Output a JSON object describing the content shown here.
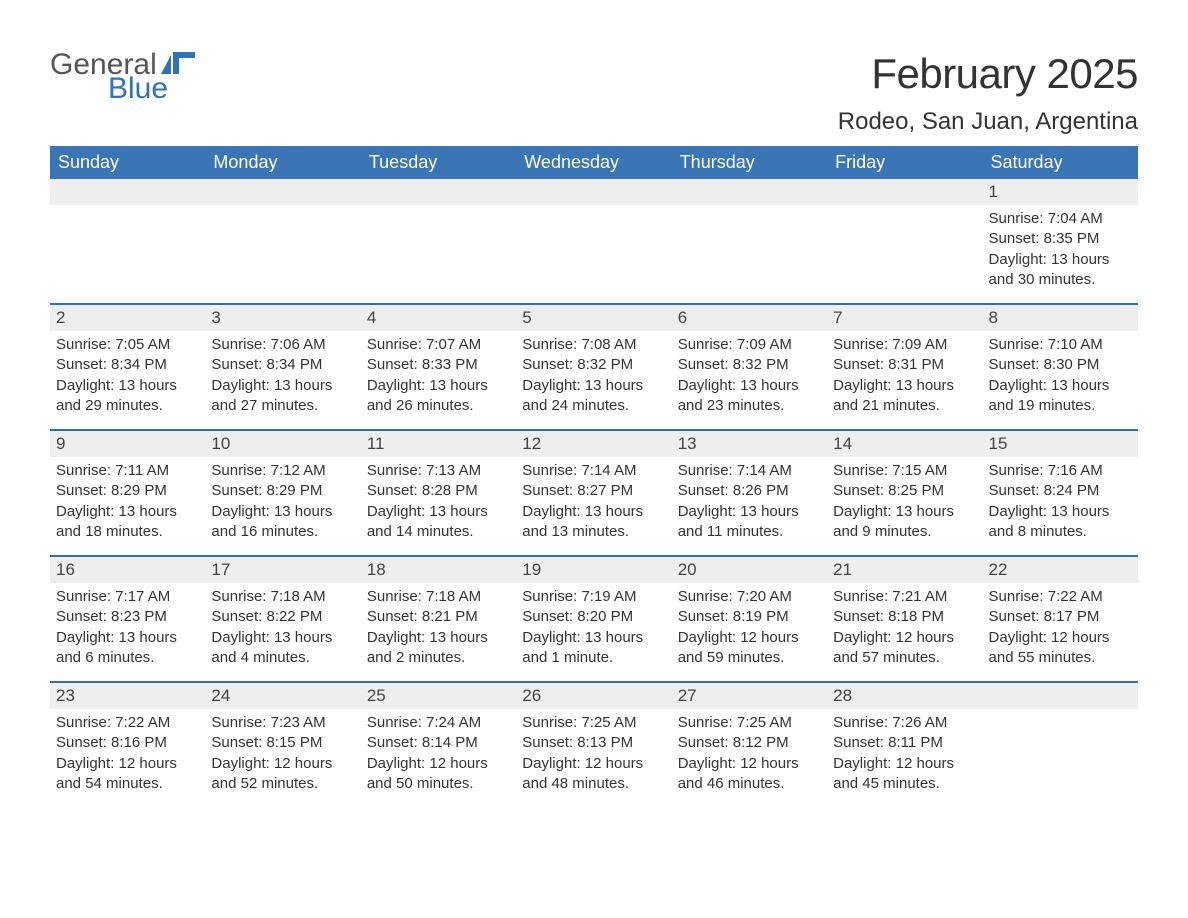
{
  "logo": {
    "word1": "General",
    "word2": "Blue"
  },
  "title": "February 2025",
  "location": "Rodeo, San Juan, Argentina",
  "colors": {
    "header_bg": "#3a75b5",
    "header_text": "#ffffff",
    "accent_border": "#2f6fad",
    "daynum_bg": "#eeeeee",
    "body_text": "#333333",
    "logo_gray": "#555555",
    "logo_blue": "#2f72b8",
    "page_bg": "#ffffff"
  },
  "typography": {
    "month_title_fontsize": 42,
    "location_fontsize": 24,
    "dayheader_fontsize": 18,
    "daynum_fontsize": 17,
    "body_fontsize": 15,
    "font_family": "Arial"
  },
  "layout": {
    "columns": 7,
    "rows": 5,
    "start_day_index": 6
  },
  "day_names": [
    "Sunday",
    "Monday",
    "Tuesday",
    "Wednesday",
    "Thursday",
    "Friday",
    "Saturday"
  ],
  "weeks": [
    [
      {
        "empty": true
      },
      {
        "empty": true
      },
      {
        "empty": true
      },
      {
        "empty": true
      },
      {
        "empty": true
      },
      {
        "empty": true
      },
      {
        "n": "1",
        "sunrise": "Sunrise: 7:04 AM",
        "sunset": "Sunset: 8:35 PM",
        "daylight": "Daylight: 13 hours and 30 minutes."
      }
    ],
    [
      {
        "n": "2",
        "sunrise": "Sunrise: 7:05 AM",
        "sunset": "Sunset: 8:34 PM",
        "daylight": "Daylight: 13 hours and 29 minutes."
      },
      {
        "n": "3",
        "sunrise": "Sunrise: 7:06 AM",
        "sunset": "Sunset: 8:34 PM",
        "daylight": "Daylight: 13 hours and 27 minutes."
      },
      {
        "n": "4",
        "sunrise": "Sunrise: 7:07 AM",
        "sunset": "Sunset: 8:33 PM",
        "daylight": "Daylight: 13 hours and 26 minutes."
      },
      {
        "n": "5",
        "sunrise": "Sunrise: 7:08 AM",
        "sunset": "Sunset: 8:32 PM",
        "daylight": "Daylight: 13 hours and 24 minutes."
      },
      {
        "n": "6",
        "sunrise": "Sunrise: 7:09 AM",
        "sunset": "Sunset: 8:32 PM",
        "daylight": "Daylight: 13 hours and 23 minutes."
      },
      {
        "n": "7",
        "sunrise": "Sunrise: 7:09 AM",
        "sunset": "Sunset: 8:31 PM",
        "daylight": "Daylight: 13 hours and 21 minutes."
      },
      {
        "n": "8",
        "sunrise": "Sunrise: 7:10 AM",
        "sunset": "Sunset: 8:30 PM",
        "daylight": "Daylight: 13 hours and 19 minutes."
      }
    ],
    [
      {
        "n": "9",
        "sunrise": "Sunrise: 7:11 AM",
        "sunset": "Sunset: 8:29 PM",
        "daylight": "Daylight: 13 hours and 18 minutes."
      },
      {
        "n": "10",
        "sunrise": "Sunrise: 7:12 AM",
        "sunset": "Sunset: 8:29 PM",
        "daylight": "Daylight: 13 hours and 16 minutes."
      },
      {
        "n": "11",
        "sunrise": "Sunrise: 7:13 AM",
        "sunset": "Sunset: 8:28 PM",
        "daylight": "Daylight: 13 hours and 14 minutes."
      },
      {
        "n": "12",
        "sunrise": "Sunrise: 7:14 AM",
        "sunset": "Sunset: 8:27 PM",
        "daylight": "Daylight: 13 hours and 13 minutes."
      },
      {
        "n": "13",
        "sunrise": "Sunrise: 7:14 AM",
        "sunset": "Sunset: 8:26 PM",
        "daylight": "Daylight: 13 hours and 11 minutes."
      },
      {
        "n": "14",
        "sunrise": "Sunrise: 7:15 AM",
        "sunset": "Sunset: 8:25 PM",
        "daylight": "Daylight: 13 hours and 9 minutes."
      },
      {
        "n": "15",
        "sunrise": "Sunrise: 7:16 AM",
        "sunset": "Sunset: 8:24 PM",
        "daylight": "Daylight: 13 hours and 8 minutes."
      }
    ],
    [
      {
        "n": "16",
        "sunrise": "Sunrise: 7:17 AM",
        "sunset": "Sunset: 8:23 PM",
        "daylight": "Daylight: 13 hours and 6 minutes."
      },
      {
        "n": "17",
        "sunrise": "Sunrise: 7:18 AM",
        "sunset": "Sunset: 8:22 PM",
        "daylight": "Daylight: 13 hours and 4 minutes."
      },
      {
        "n": "18",
        "sunrise": "Sunrise: 7:18 AM",
        "sunset": "Sunset: 8:21 PM",
        "daylight": "Daylight: 13 hours and 2 minutes."
      },
      {
        "n": "19",
        "sunrise": "Sunrise: 7:19 AM",
        "sunset": "Sunset: 8:20 PM",
        "daylight": "Daylight: 13 hours and 1 minute."
      },
      {
        "n": "20",
        "sunrise": "Sunrise: 7:20 AM",
        "sunset": "Sunset: 8:19 PM",
        "daylight": "Daylight: 12 hours and 59 minutes."
      },
      {
        "n": "21",
        "sunrise": "Sunrise: 7:21 AM",
        "sunset": "Sunset: 8:18 PM",
        "daylight": "Daylight: 12 hours and 57 minutes."
      },
      {
        "n": "22",
        "sunrise": "Sunrise: 7:22 AM",
        "sunset": "Sunset: 8:17 PM",
        "daylight": "Daylight: 12 hours and 55 minutes."
      }
    ],
    [
      {
        "n": "23",
        "sunrise": "Sunrise: 7:22 AM",
        "sunset": "Sunset: 8:16 PM",
        "daylight": "Daylight: 12 hours and 54 minutes."
      },
      {
        "n": "24",
        "sunrise": "Sunrise: 7:23 AM",
        "sunset": "Sunset: 8:15 PM",
        "daylight": "Daylight: 12 hours and 52 minutes."
      },
      {
        "n": "25",
        "sunrise": "Sunrise: 7:24 AM",
        "sunset": "Sunset: 8:14 PM",
        "daylight": "Daylight: 12 hours and 50 minutes."
      },
      {
        "n": "26",
        "sunrise": "Sunrise: 7:25 AM",
        "sunset": "Sunset: 8:13 PM",
        "daylight": "Daylight: 12 hours and 48 minutes."
      },
      {
        "n": "27",
        "sunrise": "Sunrise: 7:25 AM",
        "sunset": "Sunset: 8:12 PM",
        "daylight": "Daylight: 12 hours and 46 minutes."
      },
      {
        "n": "28",
        "sunrise": "Sunrise: 7:26 AM",
        "sunset": "Sunset: 8:11 PM",
        "daylight": "Daylight: 12 hours and 45 minutes."
      },
      {
        "empty": true
      }
    ]
  ]
}
